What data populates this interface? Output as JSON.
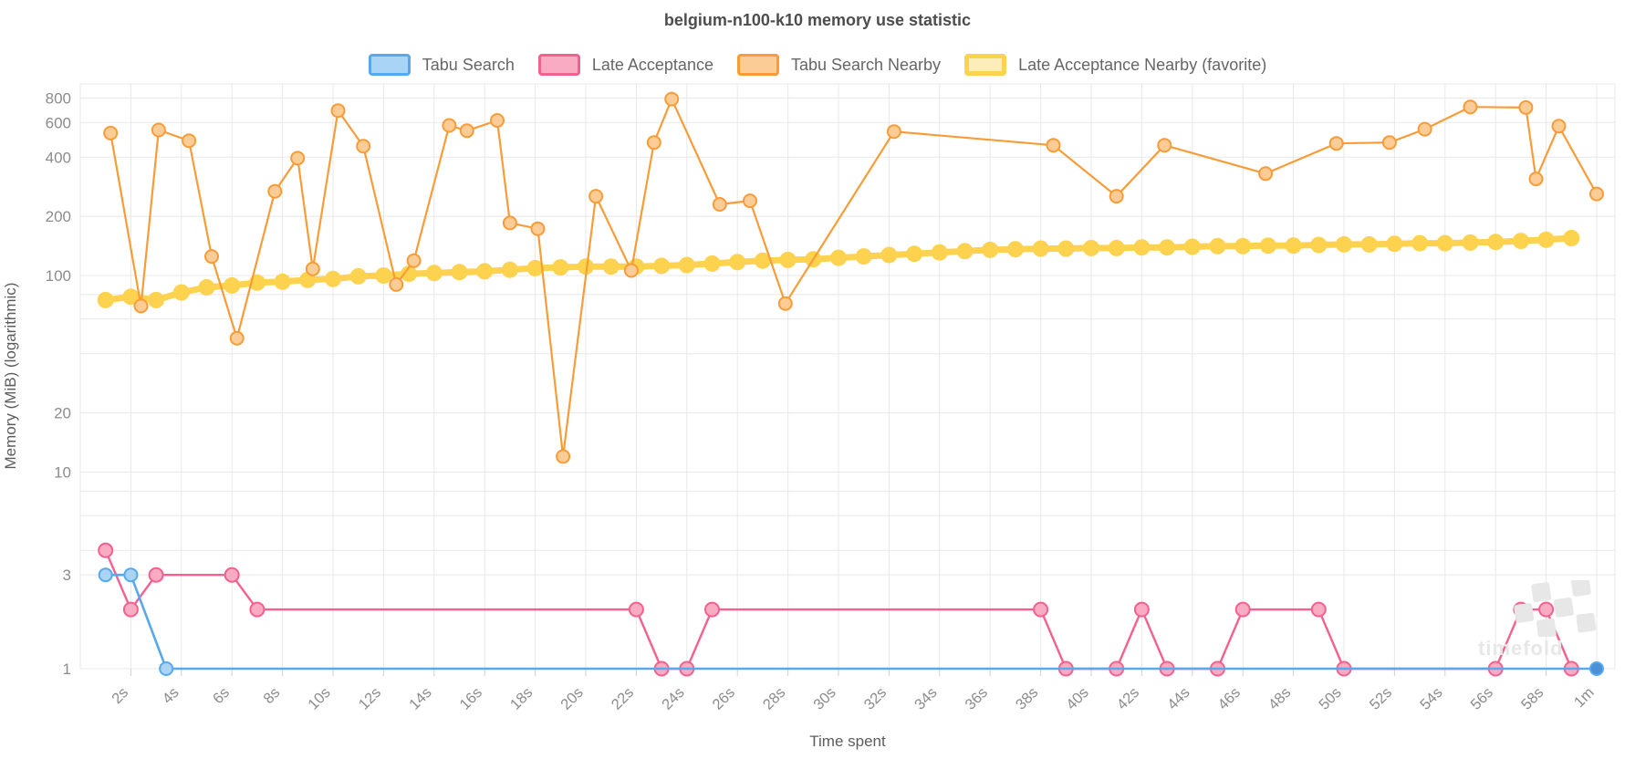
{
  "title": "belgium-n100-k10 memory use statistic",
  "watermark": {
    "text": "timefold",
    "icon": "checkered-flag"
  },
  "axes": {
    "x_title": "Time spent",
    "y_title": "Memory (MiB) (logarithmic)",
    "y_scale": "logarithmic",
    "x_tick_labels": [
      [
        2,
        "2s"
      ],
      [
        4,
        "4s"
      ],
      [
        6,
        "6s"
      ],
      [
        8,
        "8s"
      ],
      [
        10,
        "10s"
      ],
      [
        12,
        "12s"
      ],
      [
        14,
        "14s"
      ],
      [
        16,
        "16s"
      ],
      [
        18,
        "18s"
      ],
      [
        20,
        "20s"
      ],
      [
        22,
        "22s"
      ],
      [
        24,
        "24s"
      ],
      [
        26,
        "26s"
      ],
      [
        28,
        "28s"
      ],
      [
        30,
        "30s"
      ],
      [
        32,
        "32s"
      ],
      [
        34,
        "34s"
      ],
      [
        36,
        "36s"
      ],
      [
        38,
        "38s"
      ],
      [
        40,
        "40s"
      ],
      [
        42,
        "42s"
      ],
      [
        44,
        "44s"
      ],
      [
        46,
        "46s"
      ],
      [
        48,
        "48s"
      ],
      [
        50,
        "50s"
      ],
      [
        52,
        "52s"
      ],
      [
        54,
        "54s"
      ],
      [
        56,
        "56s"
      ],
      [
        58,
        "58s"
      ],
      [
        60,
        "1m"
      ]
    ],
    "y_tick_labels": [
      [
        800,
        "800"
      ],
      [
        600,
        "600"
      ],
      [
        400,
        "400"
      ],
      [
        200,
        "200"
      ],
      [
        100,
        "100"
      ],
      [
        20,
        "20"
      ],
      [
        10,
        "10"
      ],
      [
        3,
        "3"
      ],
      [
        1,
        "1"
      ]
    ],
    "y_minor_gridlines": [
      80,
      60,
      40,
      8,
      6,
      4
    ]
  },
  "style": {
    "grid_color": "#e8e8e8",
    "tick_color": "#cfcfcf",
    "tick_text_color": "#8c8c8c",
    "axis_title_color": "#5c5c5c",
    "watermark_color": "#e7e7e7"
  },
  "chart_data": {
    "type": "line",
    "title": "belgium-n100-k10 memory use statistic",
    "xlabel": "Time spent",
    "ylabel": "Memory (MiB) (logarithmic)",
    "x_unit": "seconds",
    "x_range": [
      0,
      60.8
    ],
    "y_log_range": [
      1,
      950
    ],
    "legend_position": "top",
    "grid": true,
    "series": [
      {
        "name": "Tabu Search",
        "color": "#58a9ec",
        "marker_fill": "#a9d4f6",
        "end_marker_fill": "#4a90d9",
        "line_width": 2.6,
        "marker_radius": 7,
        "points": [
          [
            1,
            3
          ],
          [
            2,
            3
          ],
          [
            3.4,
            1
          ],
          [
            60,
            1
          ]
        ]
      },
      {
        "name": "Late Acceptance",
        "color": "#f4618f",
        "marker_fill": "#f8abc2",
        "line_width": 2.4,
        "marker_radius": 7.5,
        "points": [
          [
            1,
            4
          ],
          [
            2,
            2
          ],
          [
            3,
            3
          ],
          [
            6,
            3
          ],
          [
            7,
            2
          ],
          [
            22,
            2
          ],
          [
            23,
            1
          ],
          [
            24,
            1
          ],
          [
            25,
            2
          ],
          [
            38,
            2
          ],
          [
            39,
            1
          ],
          [
            41,
            1
          ],
          [
            42,
            2
          ],
          [
            43,
            1
          ],
          [
            45,
            1
          ],
          [
            46,
            2
          ],
          [
            49,
            2
          ],
          [
            50,
            1
          ],
          [
            56,
            1
          ],
          [
            57,
            2
          ],
          [
            58,
            2
          ],
          [
            59,
            1
          ]
        ]
      },
      {
        "name": "Tabu Search Nearby",
        "color": "#f99c38",
        "marker_fill": "#fbcc96",
        "line_width": 2.2,
        "marker_radius": 7,
        "points": [
          [
            1.2,
            530
          ],
          [
            2.4,
            70
          ],
          [
            3.1,
            550
          ],
          [
            4.3,
            485
          ],
          [
            5.2,
            125
          ],
          [
            6.2,
            48
          ],
          [
            7.7,
            268
          ],
          [
            8.6,
            395
          ],
          [
            9.2,
            108
          ],
          [
            10.2,
            690
          ],
          [
            11.2,
            455
          ],
          [
            12.5,
            90
          ],
          [
            13.2,
            119
          ],
          [
            14.6,
            580
          ],
          [
            15.3,
            545
          ],
          [
            16.5,
            615
          ],
          [
            17,
            185
          ],
          [
            18.1,
            173
          ],
          [
            19.1,
            12
          ],
          [
            20.4,
            253
          ],
          [
            21.8,
            106
          ],
          [
            22.7,
            475
          ],
          [
            23.4,
            790
          ],
          [
            25.3,
            230
          ],
          [
            26.5,
            240
          ],
          [
            27.9,
            72
          ],
          [
            32.2,
            540
          ],
          [
            38.5,
            460
          ],
          [
            41,
            253
          ],
          [
            42.9,
            460
          ],
          [
            46.9,
            330
          ],
          [
            49.7,
            470
          ],
          [
            51.8,
            475
          ],
          [
            53.2,
            555
          ],
          [
            55,
            720
          ],
          [
            57.2,
            715
          ],
          [
            57.6,
            310
          ],
          [
            58.5,
            575
          ],
          [
            60,
            260
          ]
        ]
      },
      {
        "name": "Late Acceptance Nearby (favorite)",
        "color": "#fcd24e",
        "marker_fill": "#fcd24e",
        "line_width": 7,
        "marker_radius": 9,
        "favorite": true,
        "points": [
          [
            1,
            75
          ],
          [
            2,
            78
          ],
          [
            3,
            75
          ],
          [
            4,
            82
          ],
          [
            5,
            87
          ],
          [
            6,
            89
          ],
          [
            7,
            92
          ],
          [
            8,
            93
          ],
          [
            9,
            95
          ],
          [
            10,
            96
          ],
          [
            11,
            99
          ],
          [
            12,
            100
          ],
          [
            13,
            102
          ],
          [
            14,
            103
          ],
          [
            15,
            104
          ],
          [
            16,
            105
          ],
          [
            17,
            107
          ],
          [
            18,
            109
          ],
          [
            19,
            110
          ],
          [
            20,
            111
          ],
          [
            21,
            111
          ],
          [
            22,
            111
          ],
          [
            23,
            112
          ],
          [
            24,
            113
          ],
          [
            25,
            115
          ],
          [
            26,
            117
          ],
          [
            27,
            119
          ],
          [
            28,
            120
          ],
          [
            29,
            121
          ],
          [
            30,
            123
          ],
          [
            31,
            125
          ],
          [
            32,
            127
          ],
          [
            33,
            129
          ],
          [
            34,
            131
          ],
          [
            35,
            133
          ],
          [
            36,
            135
          ],
          [
            37,
            136
          ],
          [
            38,
            137
          ],
          [
            39,
            137
          ],
          [
            40,
            138
          ],
          [
            41,
            138
          ],
          [
            42,
            139
          ],
          [
            43,
            139
          ],
          [
            44,
            140
          ],
          [
            45,
            141
          ],
          [
            46,
            141
          ],
          [
            47,
            142
          ],
          [
            48,
            142
          ],
          [
            49,
            143
          ],
          [
            50,
            144
          ],
          [
            51,
            144
          ],
          [
            52,
            145
          ],
          [
            53,
            146
          ],
          [
            54,
            146
          ],
          [
            55,
            147
          ],
          [
            56,
            148
          ],
          [
            57,
            150
          ],
          [
            58,
            152
          ],
          [
            59,
            155
          ]
        ]
      }
    ]
  }
}
